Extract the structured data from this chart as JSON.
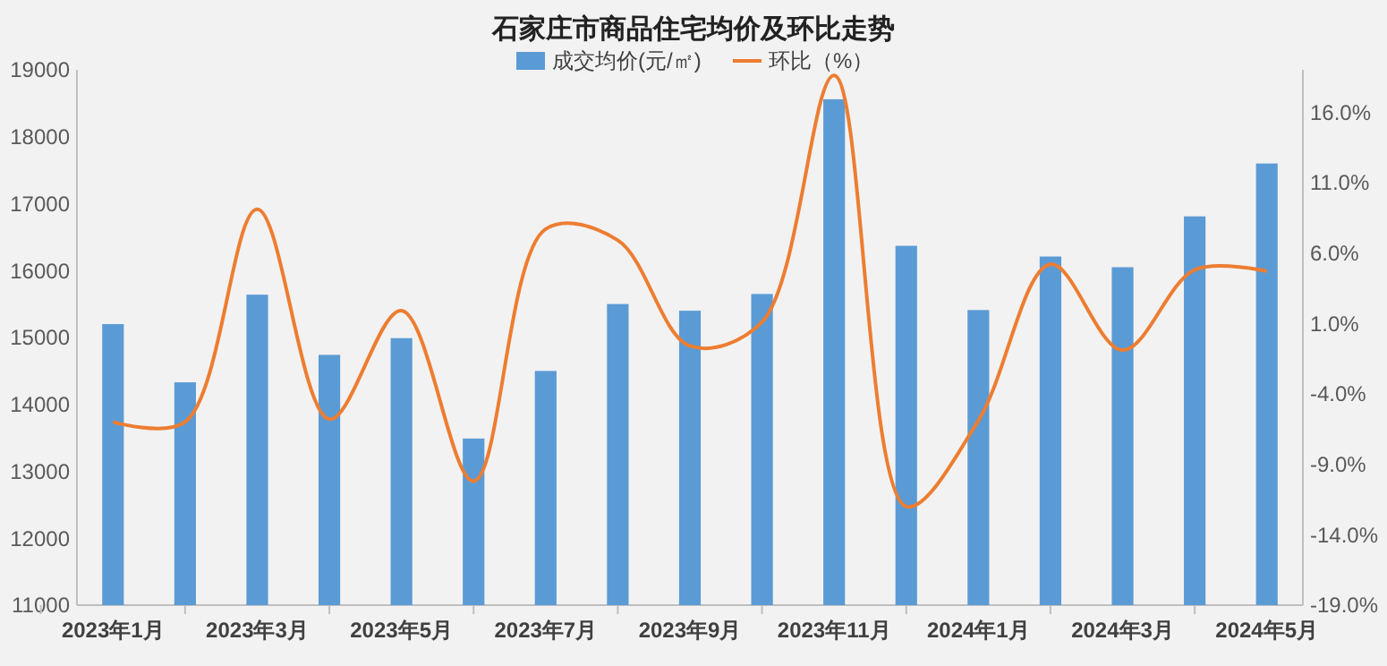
{
  "chart_data": {
    "type": "bar",
    "title": "石家庄市商品住宅均价及环比走势",
    "categories": [
      "2023年1月",
      null,
      "2023年3月",
      null,
      "2023年5月",
      null,
      "2023年7月",
      null,
      "2023年9月",
      null,
      "2023年11月",
      null,
      "2024年1月",
      null,
      "2024年3月",
      null,
      "2024年5月"
    ],
    "series": [
      {
        "name": "成交均价(元/㎡)",
        "color": "#5b9bd5",
        "values": [
          15200,
          14330,
          15640,
          14740,
          14990,
          13490,
          14500,
          15500,
          15400,
          15650,
          18560,
          16370,
          15410,
          16210,
          16050,
          16810,
          17600
        ]
      },
      {
        "name": "环比（%）",
        "type": "line",
        "axis": "y2",
        "color": "#ed7d31",
        "values": [
          -6.0,
          -6.0,
          9.1,
          -5.8,
          1.9,
          -10.2,
          7.7,
          6.9,
          -0.6,
          1.1,
          18.6,
          -12.0,
          -5.9,
          5.2,
          -0.9,
          4.8,
          4.7
        ]
      }
    ],
    "ylim": [
      11000,
      19000
    ],
    "yticks": [
      11000,
      12000,
      13000,
      14000,
      15000,
      16000,
      17000,
      18000,
      19000
    ],
    "y2lim": [
      -19,
      19
    ],
    "y2ticks": [
      {
        "value": -19,
        "label": "-19.0%"
      },
      {
        "value": -14,
        "label": "-14.0%"
      },
      {
        "value": -9,
        "label": "-9.0%"
      },
      {
        "value": -4,
        "label": "-4.0%"
      },
      {
        "value": 1,
        "label": "1.0%"
      },
      {
        "value": 6,
        "label": "6.0%"
      },
      {
        "value": 11,
        "label": "11.0%"
      },
      {
        "value": 16,
        "label": "16.0%"
      }
    ],
    "grid": false,
    "legend": "top",
    "marker": "none",
    "line_style": "solid"
  }
}
